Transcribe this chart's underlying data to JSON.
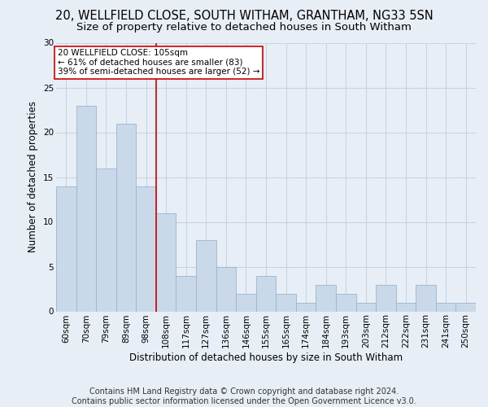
{
  "title": "20, WELLFIELD CLOSE, SOUTH WITHAM, GRANTHAM, NG33 5SN",
  "subtitle": "Size of property relative to detached houses in South Witham",
  "xlabel": "Distribution of detached houses by size in South Witham",
  "ylabel": "Number of detached properties",
  "footer_line1": "Contains HM Land Registry data © Crown copyright and database right 2024.",
  "footer_line2": "Contains public sector information licensed under the Open Government Licence v3.0.",
  "categories": [
    "60sqm",
    "70sqm",
    "79sqm",
    "89sqm",
    "98sqm",
    "108sqm",
    "117sqm",
    "127sqm",
    "136sqm",
    "146sqm",
    "155sqm",
    "165sqm",
    "174sqm",
    "184sqm",
    "193sqm",
    "203sqm",
    "212sqm",
    "222sqm",
    "231sqm",
    "241sqm",
    "250sqm"
  ],
  "values": [
    14,
    23,
    16,
    21,
    14,
    11,
    4,
    8,
    5,
    2,
    4,
    2,
    1,
    3,
    2,
    1,
    3,
    1,
    3,
    1,
    1
  ],
  "bar_color": "#c9d9ea",
  "bar_edge_color": "#9ab5cc",
  "ylim": [
    0,
    30
  ],
  "yticks": [
    0,
    5,
    10,
    15,
    20,
    25,
    30
  ],
  "annotation_box_text_line1": "20 WELLFIELD CLOSE: 105sqm",
  "annotation_box_text_line2": "← 61% of detached houses are smaller (83)",
  "annotation_box_text_line3": "39% of semi-detached houses are larger (52) →",
  "vline_x_index": 5,
  "annotation_box_color": "#ffffff",
  "annotation_box_edge_color": "#cc0000",
  "vline_color": "#cc0000",
  "grid_color": "#c8d4df",
  "background_color": "#e8eef5",
  "title_fontsize": 10.5,
  "subtitle_fontsize": 9.5,
  "axis_label_fontsize": 8.5,
  "tick_fontsize": 7.5,
  "annotation_fontsize": 7.5,
  "footer_fontsize": 7.0
}
